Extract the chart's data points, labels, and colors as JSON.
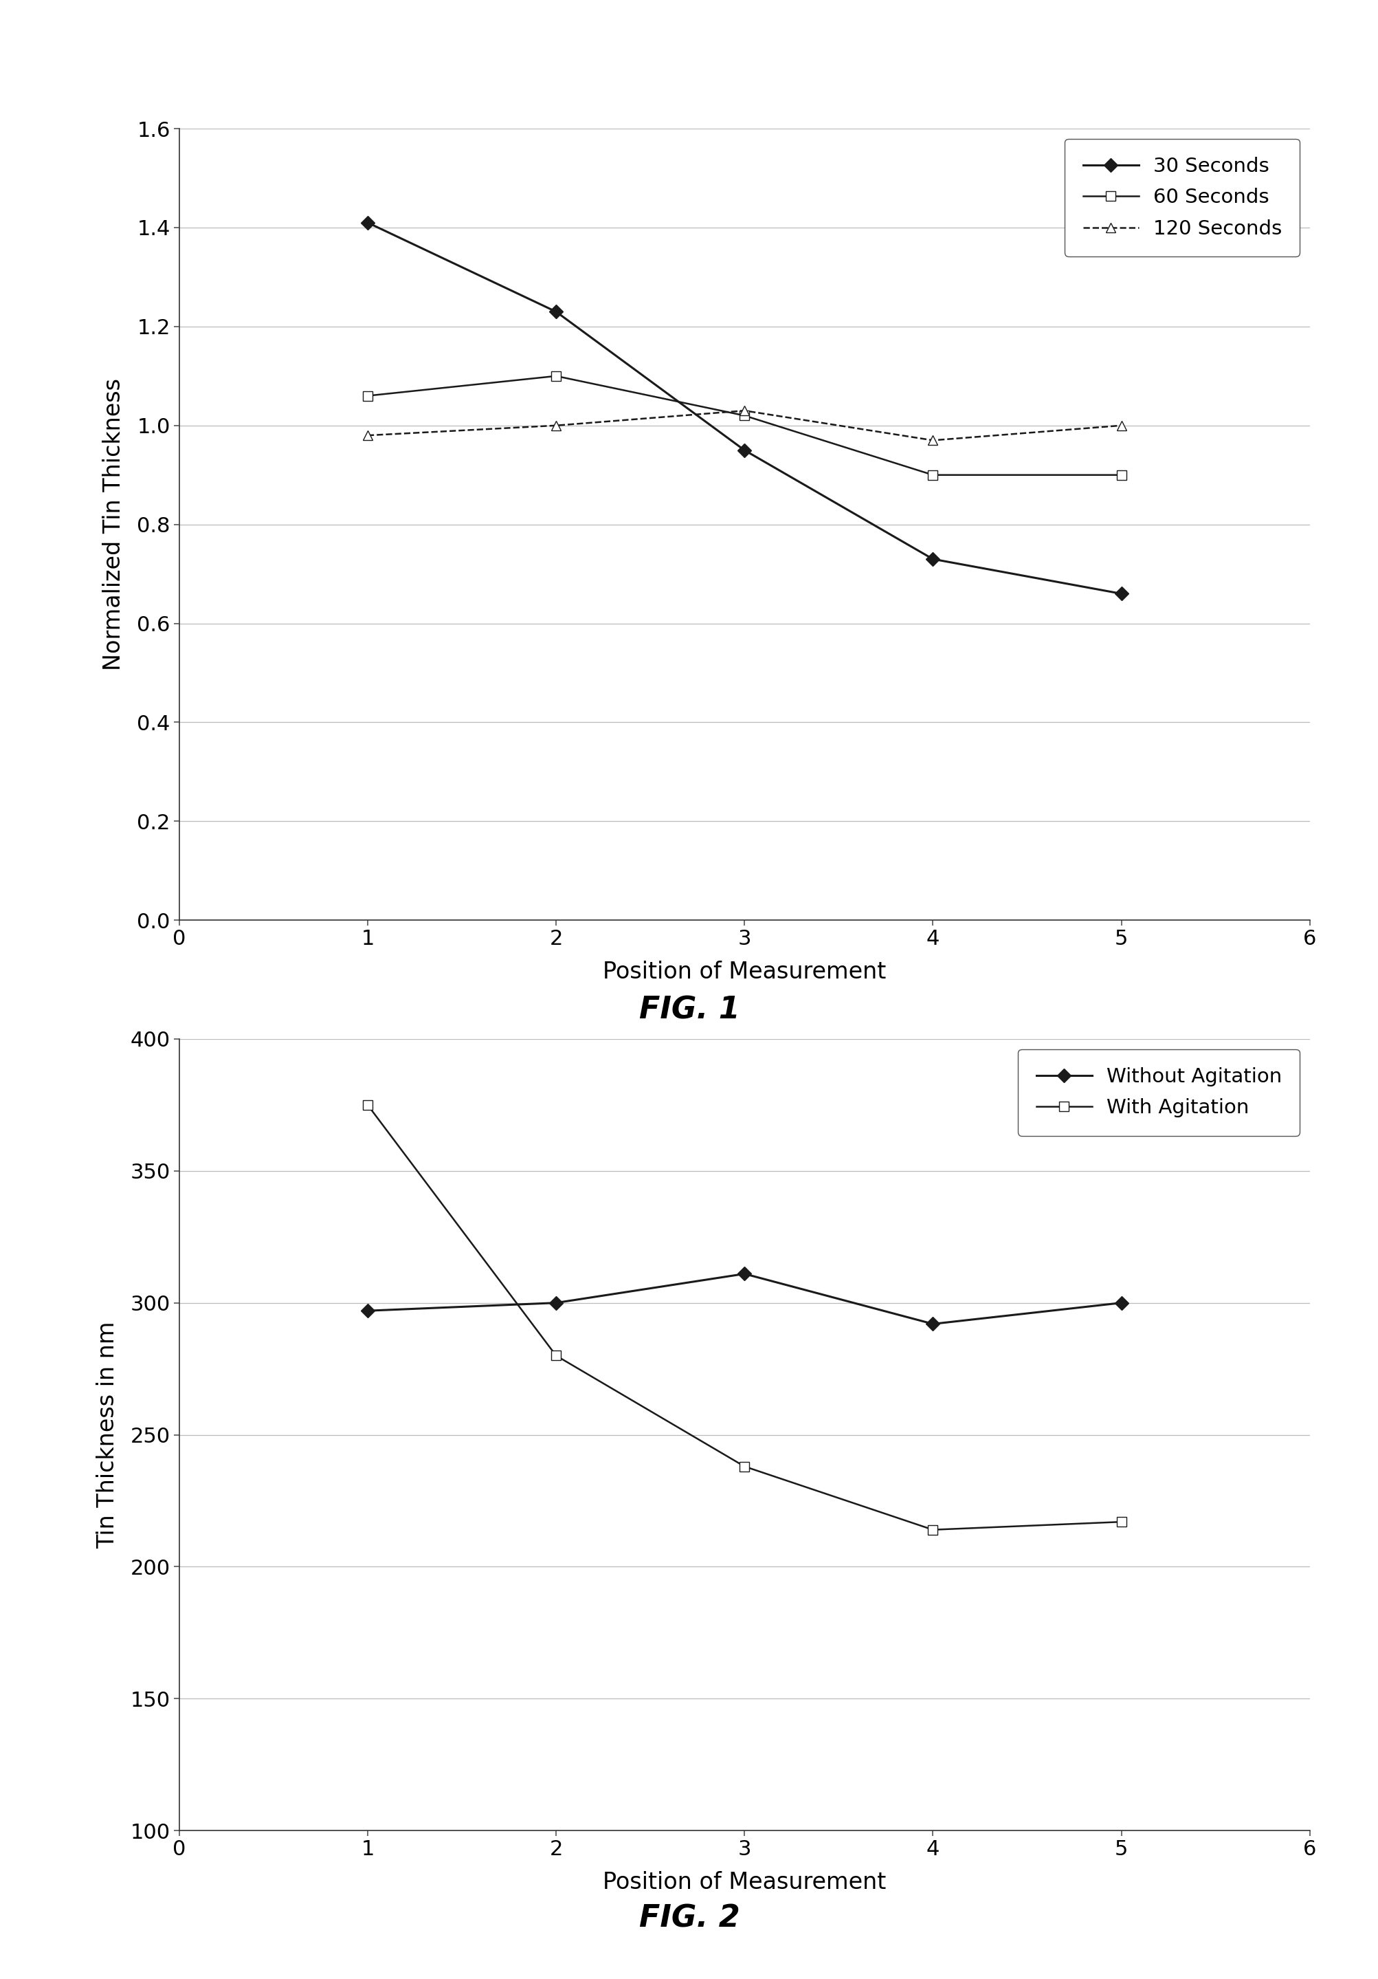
{
  "fig1": {
    "title": "FIG. 1",
    "xlabel": "Position of Measurement",
    "ylabel": "Normalized Tin Thickness",
    "xlim": [
      0,
      6
    ],
    "ylim": [
      0,
      1.6
    ],
    "yticks": [
      0,
      0.2,
      0.4,
      0.6,
      0.8,
      1.0,
      1.2,
      1.4,
      1.6
    ],
    "xticks": [
      0,
      1,
      2,
      3,
      4,
      5,
      6
    ],
    "series": [
      {
        "label": "30 Seconds",
        "x": [
          1,
          2,
          3,
          4,
          5
        ],
        "y": [
          1.41,
          1.23,
          0.95,
          0.73,
          0.66
        ],
        "color": "#1a1a1a",
        "marker": "D",
        "markersize": 10,
        "linestyle": "-",
        "linewidth": 2.2,
        "markerfacecolor": "#1a1a1a",
        "markeredgecolor": "#1a1a1a"
      },
      {
        "label": "60 Seconds",
        "x": [
          1,
          2,
          3,
          4,
          5
        ],
        "y": [
          1.06,
          1.1,
          1.02,
          0.9,
          0.9
        ],
        "color": "#1a1a1a",
        "marker": "s",
        "markersize": 10,
        "linestyle": "-",
        "linewidth": 1.8,
        "markerfacecolor": "#ffffff",
        "markeredgecolor": "#1a1a1a"
      },
      {
        "label": "120 Seconds",
        "x": [
          1,
          2,
          3,
          4,
          5
        ],
        "y": [
          0.98,
          1.0,
          1.03,
          0.97,
          1.0
        ],
        "color": "#1a1a1a",
        "marker": "^",
        "markersize": 10,
        "linestyle": "--",
        "linewidth": 1.8,
        "markerfacecolor": "#ffffff",
        "markeredgecolor": "#1a1a1a"
      }
    ]
  },
  "fig2": {
    "title": "FIG. 2",
    "xlabel": "Position of Measurement",
    "ylabel": "Tin Thickness in nm",
    "xlim": [
      0,
      6
    ],
    "ylim": [
      100,
      400
    ],
    "yticks": [
      100,
      150,
      200,
      250,
      300,
      350,
      400
    ],
    "xticks": [
      0,
      1,
      2,
      3,
      4,
      5,
      6
    ],
    "series": [
      {
        "label": "Without Agitation",
        "x": [
          1,
          2,
          3,
          4,
          5
        ],
        "y": [
          297,
          300,
          311,
          292,
          300
        ],
        "color": "#1a1a1a",
        "marker": "D",
        "markersize": 10,
        "linestyle": "-",
        "linewidth": 2.2,
        "markerfacecolor": "#1a1a1a",
        "markeredgecolor": "#1a1a1a"
      },
      {
        "label": "With Agitation",
        "x": [
          1,
          2,
          3,
          4,
          5
        ],
        "y": [
          375,
          280,
          238,
          214,
          217
        ],
        "color": "#1a1a1a",
        "marker": "s",
        "markersize": 10,
        "linestyle": "-",
        "linewidth": 1.8,
        "markerfacecolor": "#ffffff",
        "markeredgecolor": "#1a1a1a"
      }
    ]
  },
  "background_color": "#ffffff",
  "grid_color": "#bbbbbb",
  "title_fontsize": 32,
  "label_fontsize": 24,
  "tick_fontsize": 22,
  "legend_fontsize": 21
}
